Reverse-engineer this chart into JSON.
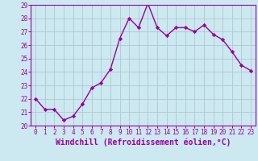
{
  "x": [
    0,
    1,
    2,
    3,
    4,
    5,
    6,
    7,
    8,
    9,
    10,
    11,
    12,
    13,
    14,
    15,
    16,
    17,
    18,
    19,
    20,
    21,
    22,
    23
  ],
  "y": [
    22.0,
    21.2,
    21.2,
    20.4,
    20.7,
    21.6,
    22.8,
    23.2,
    24.2,
    26.5,
    28.0,
    27.3,
    29.1,
    27.3,
    26.7,
    27.3,
    27.3,
    27.0,
    27.5,
    26.8,
    26.4,
    25.5,
    24.5,
    24.1
  ],
  "line_color": "#990099",
  "marker": "D",
  "marker_size": 2.2,
  "bg_color": "#cce8f0",
  "grid_color": "#b0c8d0",
  "xlabel": "Windchill (Refroidissement éolien,°C)",
  "xlabel_color": "#990099",
  "tick_color": "#990099",
  "axis_color": "#990099",
  "ylim": [
    20,
    29
  ],
  "xlim": [
    -0.5,
    23.5
  ],
  "yticks": [
    20,
    21,
    22,
    23,
    24,
    25,
    26,
    27,
    28,
    29
  ],
  "xticks": [
    0,
    1,
    2,
    3,
    4,
    5,
    6,
    7,
    8,
    9,
    10,
    11,
    12,
    13,
    14,
    15,
    16,
    17,
    18,
    19,
    20,
    21,
    22,
    23
  ],
  "tick_fontsize": 5.5,
  "label_fontsize": 7.0,
  "line_width": 1.0
}
